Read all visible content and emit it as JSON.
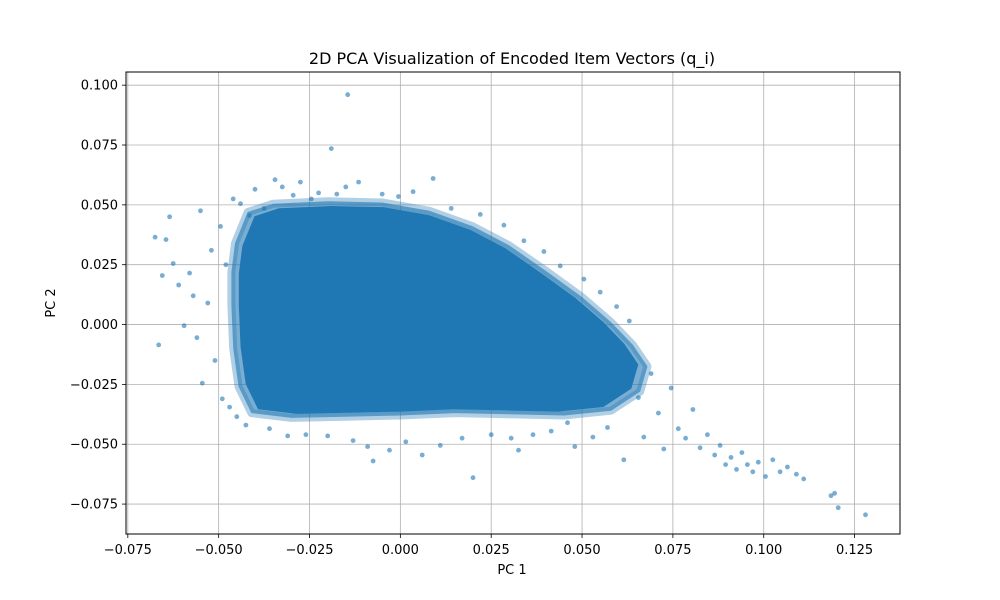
{
  "chart_data": {
    "type": "scatter",
    "title": "2D PCA Visualization of Encoded Item Vectors (q_i)",
    "xlabel": "PC 1",
    "ylabel": "PC 2",
    "xlim": [
      -0.0755,
      0.1375
    ],
    "ylim": [
      -0.0875,
      0.1055
    ],
    "grid": true,
    "marker_color": "#1f77b4",
    "marker_alpha": 0.6,
    "xticks": [
      -0.075,
      -0.05,
      -0.025,
      0.0,
      0.025,
      0.05,
      0.075,
      0.1,
      0.125
    ],
    "xtick_labels": [
      "−0.075",
      "−0.050",
      "−0.025",
      "0.000",
      "0.025",
      "0.050",
      "0.075",
      "0.100",
      "0.125"
    ],
    "yticks": [
      -0.075,
      -0.05,
      -0.025,
      0.0,
      0.025,
      0.05,
      0.075,
      0.1
    ],
    "ytick_labels": [
      "−0.075",
      "−0.050",
      "−0.025",
      "0.000",
      "0.025",
      "0.050",
      "0.075",
      "0.100"
    ],
    "series": [
      {
        "points": [
          [
            -0.0675,
            0.0365
          ],
          [
            -0.0665,
            -0.0085
          ],
          [
            -0.0655,
            0.0205
          ],
          [
            -0.0645,
            0.0355
          ],
          [
            -0.0635,
            0.045
          ],
          [
            -0.0625,
            0.0255
          ],
          [
            -0.061,
            0.0165
          ],
          [
            -0.0595,
            -0.0005
          ],
          [
            -0.058,
            0.0215
          ],
          [
            -0.057,
            0.012
          ],
          [
            -0.056,
            -0.0055
          ],
          [
            -0.055,
            0.0475
          ],
          [
            -0.0545,
            -0.0245
          ],
          [
            -0.053,
            0.009
          ],
          [
            -0.052,
            0.031
          ],
          [
            -0.051,
            -0.015
          ],
          [
            -0.0495,
            0.041
          ],
          [
            -0.049,
            -0.031
          ],
          [
            -0.048,
            0.025
          ],
          [
            -0.047,
            -0.0345
          ],
          [
            -0.046,
            0.0525
          ],
          [
            -0.045,
            -0.0385
          ],
          [
            -0.044,
            0.0505
          ],
          [
            -0.0425,
            -0.042
          ],
          [
            -0.0415,
            0.0455
          ],
          [
            -0.04,
            0.0565
          ],
          [
            -0.0375,
            0.0485
          ],
          [
            -0.036,
            -0.0435
          ],
          [
            -0.0345,
            0.0605
          ],
          [
            -0.0325,
            0.0575
          ],
          [
            -0.031,
            -0.0465
          ],
          [
            -0.0295,
            0.054
          ],
          [
            -0.0275,
            0.0595
          ],
          [
            -0.026,
            -0.046
          ],
          [
            -0.0245,
            0.0525
          ],
          [
            -0.0225,
            0.055
          ],
          [
            -0.02,
            -0.0465
          ],
          [
            -0.019,
            0.0735
          ],
          [
            -0.0175,
            0.0545
          ],
          [
            -0.015,
            0.0575
          ],
          [
            -0.0145,
            0.096
          ],
          [
            -0.013,
            -0.0485
          ],
          [
            -0.0115,
            0.0595
          ],
          [
            -0.009,
            -0.051
          ],
          [
            -0.0075,
            -0.057
          ],
          [
            -0.005,
            0.0545
          ],
          [
            -0.003,
            -0.0525
          ],
          [
            -0.0005,
            0.0535
          ],
          [
            0.0015,
            -0.049
          ],
          [
            0.0035,
            0.0555
          ],
          [
            0.006,
            -0.0545
          ],
          [
            0.009,
            0.061
          ],
          [
            0.011,
            -0.0505
          ],
          [
            0.014,
            0.0485
          ],
          [
            0.017,
            -0.0475
          ],
          [
            0.02,
            -0.064
          ],
          [
            0.022,
            0.046
          ],
          [
            0.025,
            -0.046
          ],
          [
            0.0285,
            0.0415
          ],
          [
            0.0305,
            -0.0475
          ],
          [
            0.0325,
            -0.0525
          ],
          [
            0.034,
            0.035
          ],
          [
            0.0365,
            -0.046
          ],
          [
            0.0395,
            0.0305
          ],
          [
            0.0415,
            -0.0445
          ],
          [
            0.044,
            0.0245
          ],
          [
            0.046,
            -0.041
          ],
          [
            0.048,
            -0.051
          ],
          [
            0.0505,
            0.019
          ],
          [
            0.053,
            -0.047
          ],
          [
            0.055,
            0.0135
          ],
          [
            0.057,
            -0.043
          ],
          [
            0.0595,
            0.0075
          ],
          [
            0.0615,
            -0.0565
          ],
          [
            0.063,
            0.0015
          ],
          [
            0.0655,
            -0.0305
          ],
          [
            0.067,
            -0.047
          ],
          [
            0.069,
            -0.0205
          ],
          [
            0.071,
            -0.037
          ],
          [
            0.0725,
            -0.052
          ],
          [
            0.0745,
            -0.0265
          ],
          [
            0.0765,
            -0.0435
          ],
          [
            0.0785,
            -0.0475
          ],
          [
            0.0805,
            -0.0355
          ],
          [
            0.0825,
            -0.0515
          ],
          [
            0.0845,
            -0.046
          ],
          [
            0.0865,
            -0.0545
          ],
          [
            0.088,
            -0.0505
          ],
          [
            0.0895,
            -0.0585
          ],
          [
            0.091,
            -0.0555
          ],
          [
            0.0925,
            -0.0605
          ],
          [
            0.094,
            -0.0535
          ],
          [
            0.0955,
            -0.0585
          ],
          [
            0.097,
            -0.0615
          ],
          [
            0.0985,
            -0.0575
          ],
          [
            0.1005,
            -0.0635
          ],
          [
            0.1025,
            -0.0565
          ],
          [
            0.1045,
            -0.0615
          ],
          [
            0.1065,
            -0.0595
          ],
          [
            0.109,
            -0.0625
          ],
          [
            0.111,
            -0.0645
          ],
          [
            0.1185,
            -0.0715
          ],
          [
            0.1195,
            -0.0705
          ],
          [
            0.1205,
            -0.0765
          ],
          [
            0.128,
            -0.0795
          ]
        ]
      }
    ]
  }
}
